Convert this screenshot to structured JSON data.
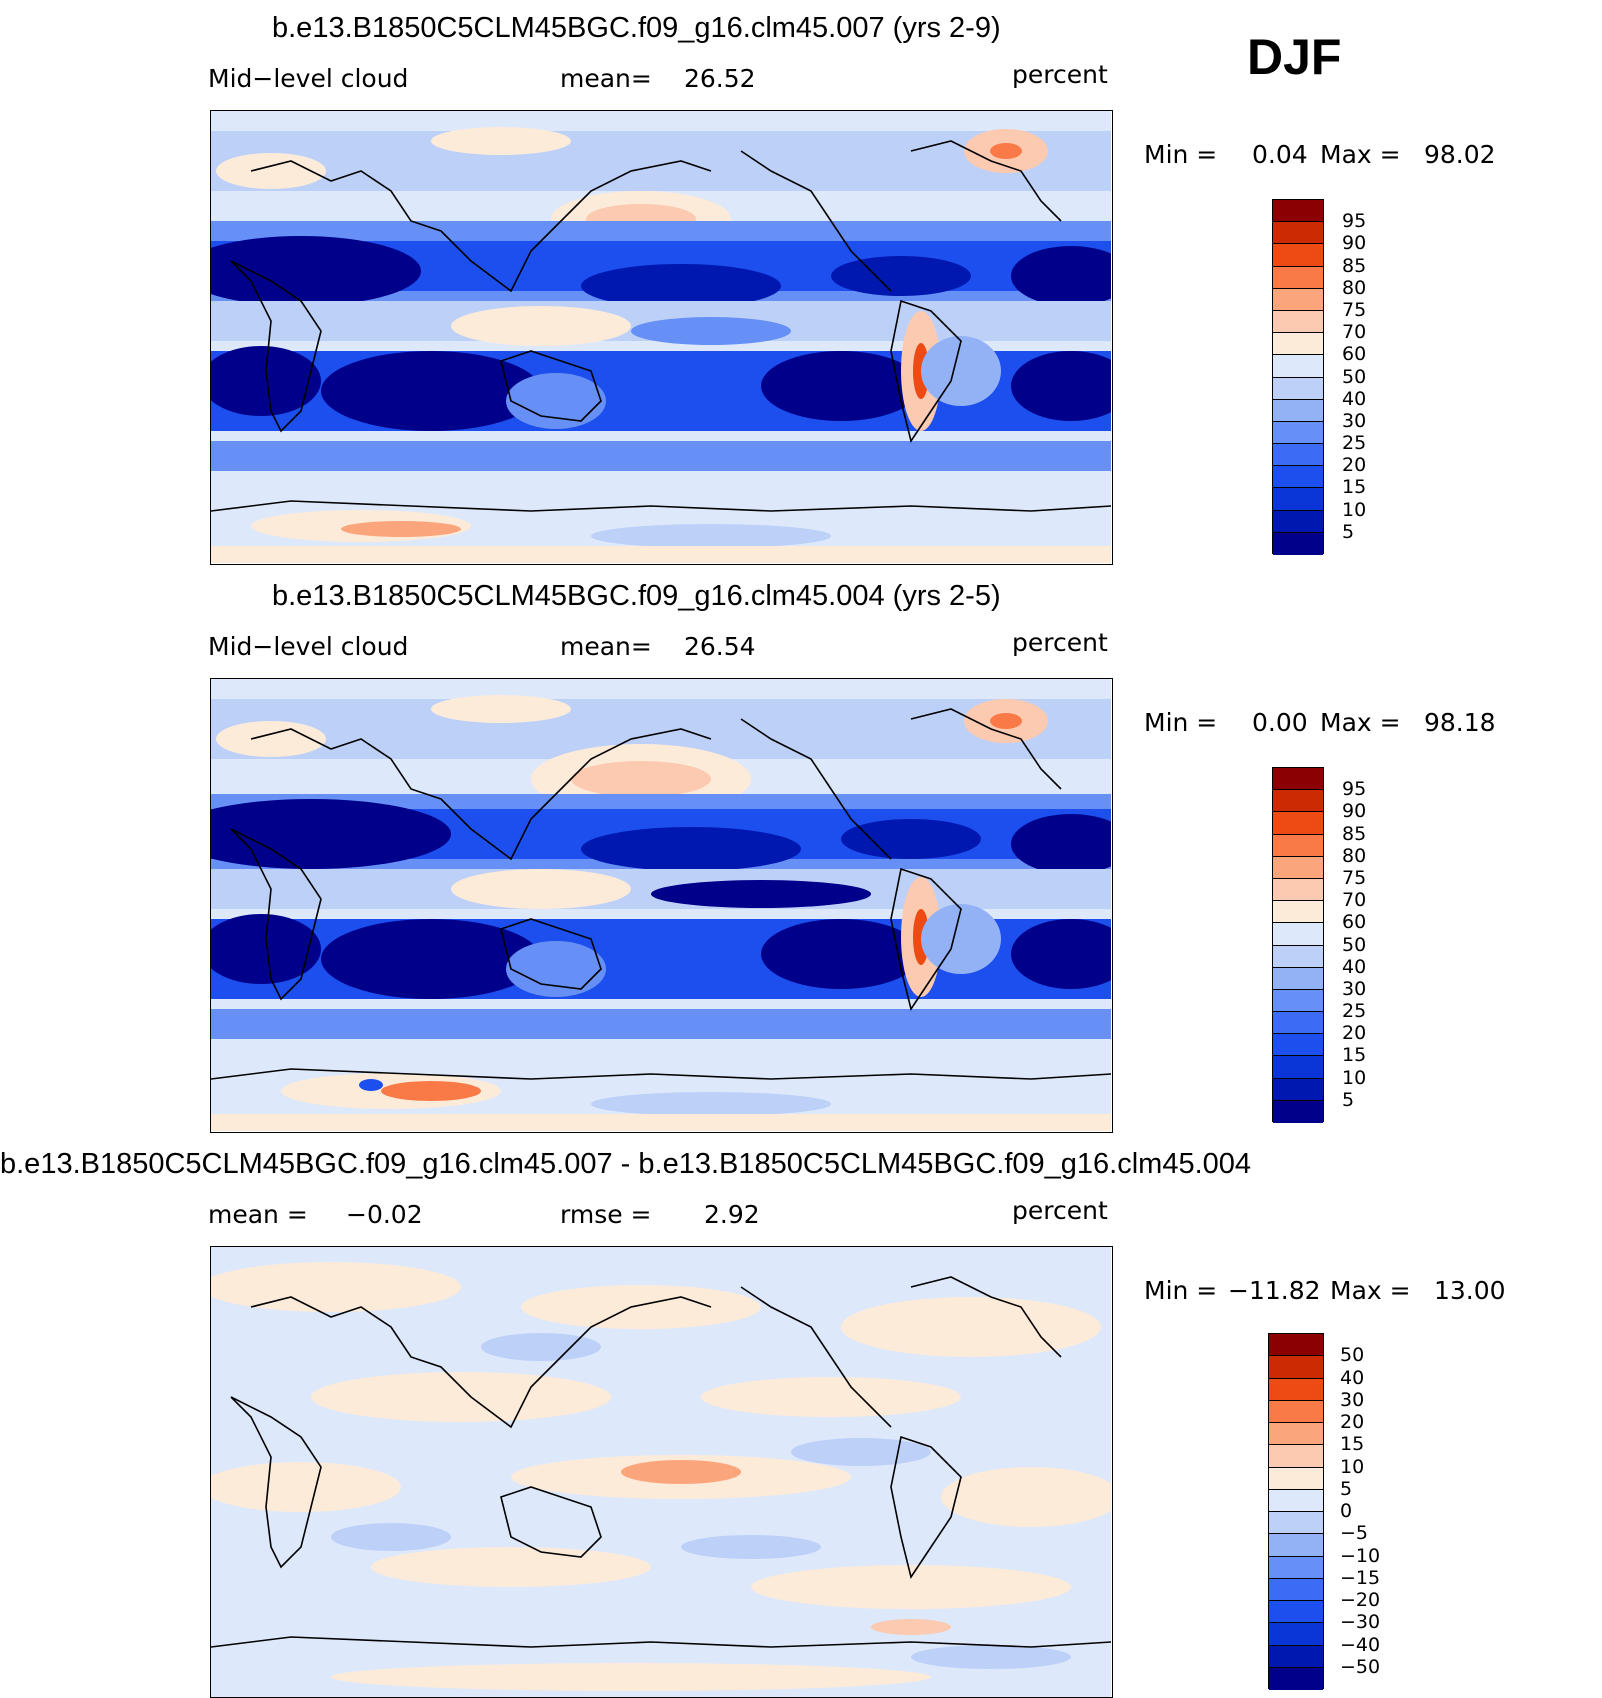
{
  "season": "DJF",
  "colors": {
    "scale": [
      "#00008b",
      "#0018b0",
      "#0a36d8",
      "#1c4fee",
      "#3c6cf4",
      "#6690f5",
      "#93b2f6",
      "#bdd0f8",
      "#dde8fb",
      "#fdebd9",
      "#fccab0",
      "#fba57c",
      "#f97a46",
      "#ee4a14",
      "#cc2a02",
      "#8b0000"
    ],
    "diff_scale": [
      "#00008b",
      "#0018b0",
      "#0a36d8",
      "#1c4fee",
      "#3c6cf4",
      "#6690f5",
      "#93b2f6",
      "#bdd0f8",
      "#dde8fb",
      "#fdebd9",
      "#fccab0",
      "#fba57c",
      "#f97a46",
      "#ee4a14",
      "#cc2a02",
      "#8b0000"
    ],
    "coast": "#000000"
  },
  "panels": [
    {
      "title": "b.e13.B1850C5CLM45BGC.f09_g16.clm45.007 (yrs 2-9)",
      "left_label": "Mid−level cloud",
      "mid_label": "mean=",
      "mid_value": "26.52",
      "units": "percent",
      "min_label": "Min =",
      "min_value": "0.04",
      "max_label": "Max =",
      "max_value": "98.02",
      "colorbar_ticks": [
        "95",
        "90",
        "85",
        "80",
        "75",
        "70",
        "60",
        "50",
        "40",
        "30",
        "25",
        "20",
        "15",
        "10",
        "5"
      ]
    },
    {
      "title": "b.e13.B1850C5CLM45BGC.f09_g16.clm45.004 (yrs 2-5)",
      "left_label": "Mid−level cloud",
      "mid_label": "mean=",
      "mid_value": "26.54",
      "units": "percent",
      "min_label": "Min =",
      "min_value": "0.00",
      "max_label": "Max =",
      "max_value": "98.18",
      "colorbar_ticks": [
        "95",
        "90",
        "85",
        "80",
        "75",
        "70",
        "60",
        "50",
        "40",
        "30",
        "25",
        "20",
        "15",
        "10",
        "5"
      ]
    },
    {
      "title": "b.e13.B1850C5CLM45BGC.f09_g16.clm45.007 - b.e13.B1850C5CLM45BGC.f09_g16.clm45.004",
      "left_label": "mean =",
      "left_value": "−0.02",
      "mid_label": "rmse =",
      "mid_value": "2.92",
      "units": "percent",
      "min_label": "Min =",
      "min_value": "−11.82",
      "max_label": "Max =",
      "max_value": "13.00",
      "colorbar_ticks": [
        "50",
        "40",
        "30",
        "20",
        "15",
        "10",
        "5",
        "0",
        "−5",
        "−10",
        "−15",
        "−20",
        "−30",
        "−40",
        "−50"
      ]
    }
  ]
}
